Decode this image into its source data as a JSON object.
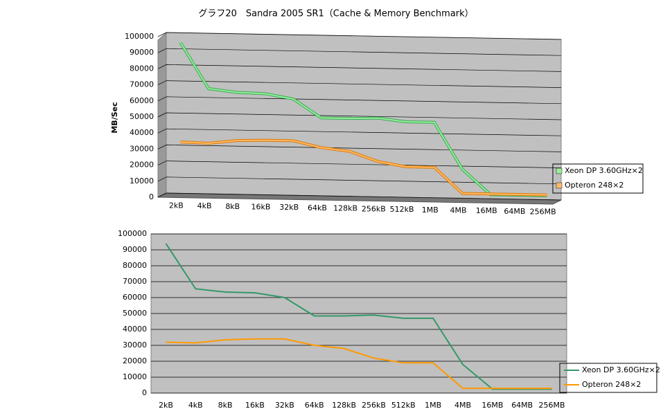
{
  "chart_data": [
    {
      "type": "line3d",
      "title": "グラフ20　Sandra 2005 SR1（Cache & Memory Benchmark）",
      "y_label": "MB/Sec",
      "categories": [
        "2kB",
        "4kB",
        "8kB",
        "16kB",
        "32kB",
        "64kB",
        "128kB",
        "256kB",
        "512kB",
        "1MB",
        "4MB",
        "16MB",
        "64MB",
        "256MB"
      ],
      "series": [
        {
          "name": "Xeon DP 3.60GHz×2",
          "color": "#99ee99",
          "values": [
            94000,
            65500,
            63500,
            63000,
            60000,
            48500,
            48500,
            49000,
            47000,
            47000,
            18000,
            2500,
            2500,
            2500
          ]
        },
        {
          "name": "Opteron 248×2",
          "color": "#ffbb66",
          "values": [
            32000,
            31500,
            33500,
            34000,
            34000,
            30000,
            28000,
            22000,
            19000,
            19000,
            3000,
            3000,
            3000,
            3000
          ]
        }
      ],
      "ylim": [
        0,
        100000
      ],
      "yticks": [
        0,
        10000,
        20000,
        30000,
        40000,
        50000,
        60000,
        70000,
        80000,
        90000,
        100000
      ],
      "grid": true,
      "legend": "right"
    },
    {
      "type": "line",
      "categories": [
        "2kB",
        "4kB",
        "8kB",
        "16kB",
        "32kB",
        "64kB",
        "128kB",
        "256kB",
        "512kB",
        "1MB",
        "4MB",
        "16MB",
        "64MB",
        "256MB"
      ],
      "series": [
        {
          "name": "Xeon DP 3.60GHz×2",
          "color": "#339966",
          "values": [
            94000,
            65500,
            63500,
            63000,
            60000,
            48500,
            48500,
            49000,
            47000,
            47000,
            18000,
            2500,
            2500,
            2500
          ]
        },
        {
          "name": "Opteron 248×2",
          "color": "#ff9900",
          "values": [
            32000,
            31500,
            33500,
            34000,
            34000,
            30000,
            28000,
            22000,
            19000,
            19000,
            3000,
            3000,
            3000,
            3000
          ]
        }
      ],
      "ylim": [
        0,
        100000
      ],
      "yticks": [
        0,
        10000,
        20000,
        30000,
        40000,
        50000,
        60000,
        70000,
        80000,
        90000,
        100000
      ],
      "grid": true,
      "legend": "right"
    }
  ]
}
